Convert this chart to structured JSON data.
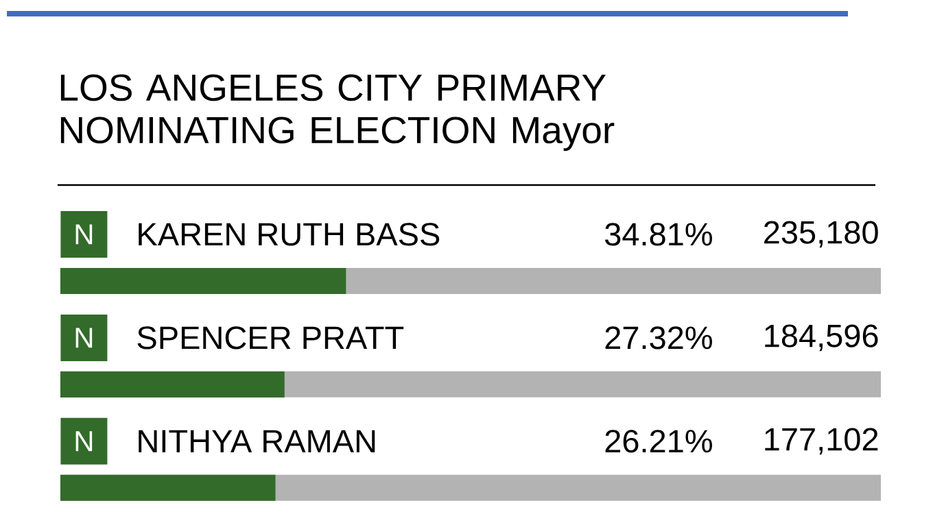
{
  "chart_data": {
    "type": "bar",
    "orientation": "horizontal",
    "title": "LOS ANGELES CITY PRIMARY NOMINATING ELECTION Mayor",
    "categories": [
      "KAREN RUTH BASS",
      "SPENCER PRATT",
      "NITHYA RAMAN"
    ],
    "values": [
      34.81,
      27.32,
      26.21
    ],
    "value_labels": [
      "34.81%",
      "27.32%",
      "26.21%"
    ],
    "color": "#336b2a",
    "xlim": [
      0,
      100
    ],
    "annotations": [
      "N",
      "235,180",
      "N",
      "184,596",
      "N",
      "177,102"
    ]
  }
}
